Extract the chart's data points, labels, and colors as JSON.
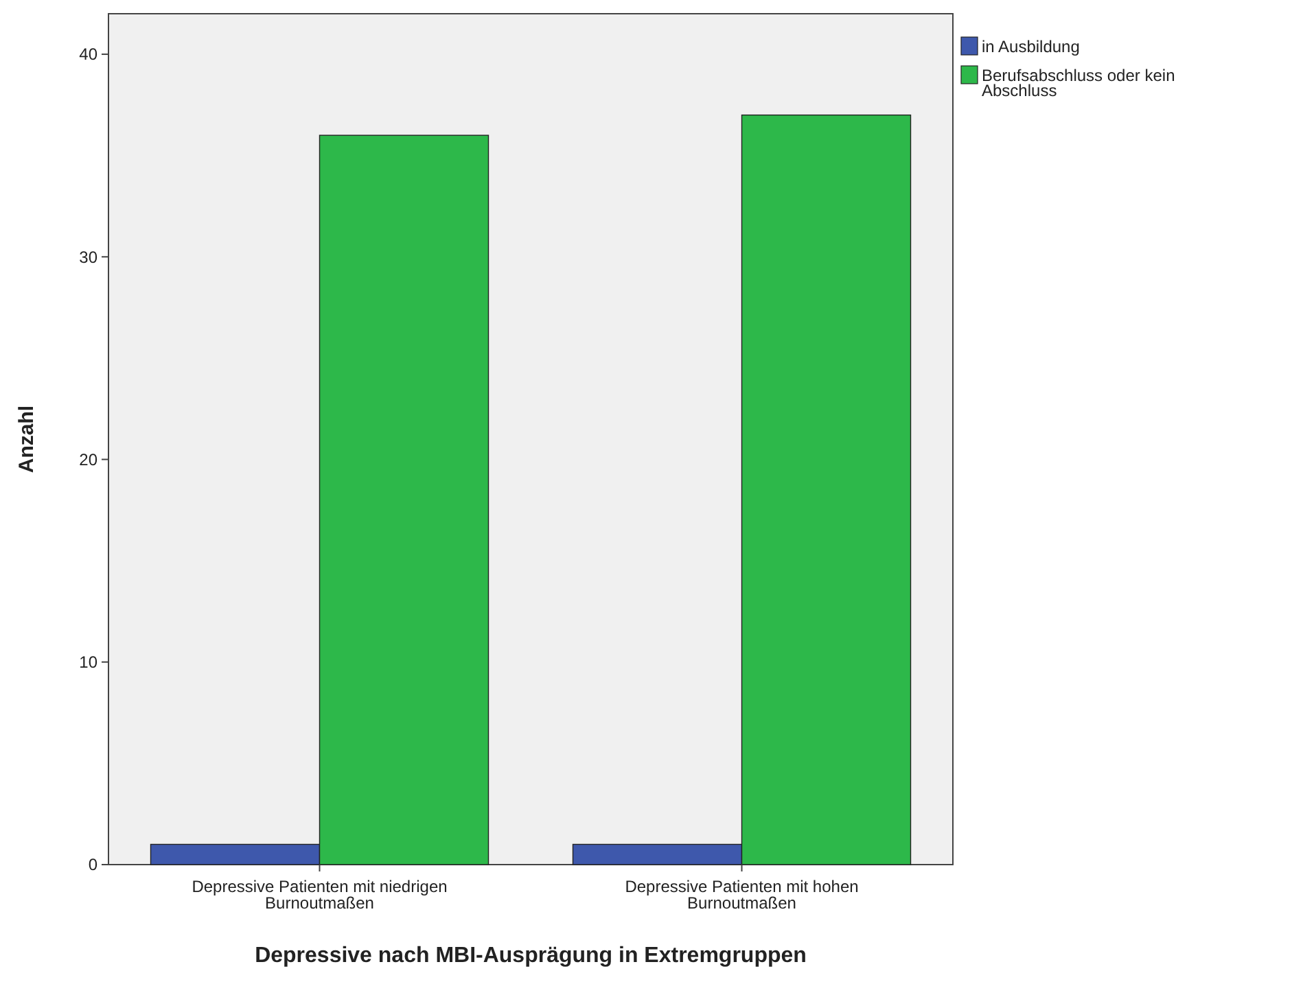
{
  "chart_data": {
    "type": "bar",
    "xlabel": "Depressive nach MBI-Ausprägung in Extremgruppen",
    "ylabel": "Anzahl",
    "categories": [
      "Depressive Patienten mit niedrigen Burnoutmaßen",
      "Depressive Patienten mit hohen Burnoutmaßen"
    ],
    "series": [
      {
        "name": "in Ausbildung",
        "color": "#3e58ac",
        "values": [
          1,
          1
        ]
      },
      {
        "name": "Berufsabschluss oder kein Abschluss",
        "color": "#2db84a",
        "values": [
          36,
          37
        ]
      }
    ],
    "ylim": [
      0,
      42
    ],
    "yticks": [
      0,
      10,
      20,
      30,
      40
    ],
    "grid": false,
    "legend": "top right"
  }
}
